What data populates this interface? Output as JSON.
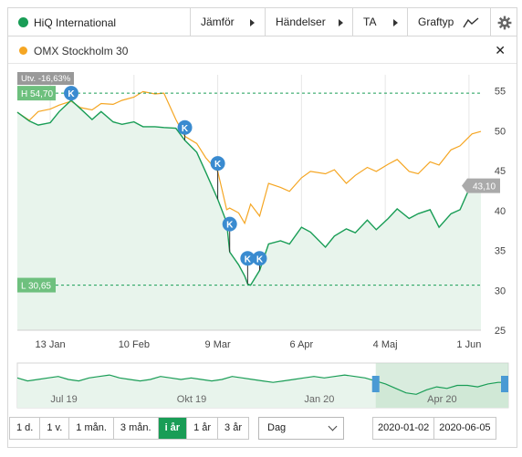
{
  "header": {
    "instrument": "HiQ International",
    "instrument_color": "#199d56",
    "buttons": [
      {
        "label": "Jämför"
      },
      {
        "label": "Händelser"
      },
      {
        "label": "TA"
      },
      {
        "label": "Graftyp"
      }
    ],
    "settings_icon": "gear-icon",
    "charttype_icon": "line-chart-icon"
  },
  "compare": {
    "label": "OMX Stockholm 30",
    "color": "#f5a623",
    "close_icon": "close-icon"
  },
  "chart_data": {
    "type": "line",
    "x_ticks": [
      "13 Jan",
      "10 Feb",
      "9 Mar",
      "6 Apr",
      "4 Maj",
      "1 Jun"
    ],
    "y_ticks": [
      "55",
      "50",
      "45",
      "40",
      "35",
      "30",
      "25"
    ],
    "ylim": [
      25,
      57
    ],
    "xlim": [
      "2020-01-02",
      "2020-06-05"
    ],
    "high_label": "H 54,70",
    "low_label": "L 30,65",
    "high_value": 54.7,
    "low_value": 30.65,
    "change_label": "Utv. -16,63%",
    "last_label": "43,10",
    "last_value": 43.1,
    "series": [
      {
        "name": "HiQ International",
        "color": "#199d56",
        "points": [
          [
            "2020-01-02",
            52.3
          ],
          [
            "2020-01-06",
            51.2
          ],
          [
            "2020-01-09",
            50.7
          ],
          [
            "2020-01-13",
            51.0
          ],
          [
            "2020-01-16",
            52.4
          ],
          [
            "2020-01-20",
            53.8
          ],
          [
            "2020-01-23",
            52.8
          ],
          [
            "2020-01-27",
            51.4
          ],
          [
            "2020-01-30",
            52.4
          ],
          [
            "2020-02-03",
            51.1
          ],
          [
            "2020-02-06",
            50.8
          ],
          [
            "2020-02-10",
            51.1
          ],
          [
            "2020-02-13",
            50.5
          ],
          [
            "2020-02-17",
            50.5
          ],
          [
            "2020-02-20",
            50.4
          ],
          [
            "2020-02-24",
            50.3
          ],
          [
            "2020-02-27",
            48.8
          ],
          [
            "2020-03-02",
            47.3
          ],
          [
            "2020-03-05",
            44.8
          ],
          [
            "2020-03-09",
            41.4
          ],
          [
            "2020-03-12",
            38.5
          ],
          [
            "2020-03-13",
            34.8
          ],
          [
            "2020-03-16",
            33.2
          ],
          [
            "2020-03-18",
            31.8
          ],
          [
            "2020-03-19",
            30.8
          ],
          [
            "2020-03-20",
            30.65
          ],
          [
            "2020-03-23",
            32.5
          ],
          [
            "2020-03-26",
            35.8
          ],
          [
            "2020-03-30",
            36.2
          ],
          [
            "2020-04-02",
            35.8
          ],
          [
            "2020-04-06",
            37.9
          ],
          [
            "2020-04-09",
            37.3
          ],
          [
            "2020-04-14",
            35.4
          ],
          [
            "2020-04-17",
            36.8
          ],
          [
            "2020-04-21",
            37.7
          ],
          [
            "2020-04-24",
            37.2
          ],
          [
            "2020-04-28",
            38.8
          ],
          [
            "2020-05-01",
            37.6
          ],
          [
            "2020-05-05",
            39.0
          ],
          [
            "2020-05-08",
            40.2
          ],
          [
            "2020-05-12",
            39.0
          ],
          [
            "2020-05-15",
            39.6
          ],
          [
            "2020-05-19",
            40.1
          ],
          [
            "2020-05-22",
            37.9
          ],
          [
            "2020-05-26",
            39.6
          ],
          [
            "2020-05-29",
            40.1
          ],
          [
            "2020-06-02",
            43.5
          ],
          [
            "2020-06-05",
            43.1
          ]
        ]
      },
      {
        "name": "OMX Stockholm 30",
        "color": "#f5a623",
        "points": [
          [
            "2020-01-02",
            52.3
          ],
          [
            "2020-01-06",
            51.3
          ],
          [
            "2020-01-09",
            52.4
          ],
          [
            "2020-01-13",
            52.7
          ],
          [
            "2020-01-16",
            53.2
          ],
          [
            "2020-01-20",
            53.7
          ],
          [
            "2020-01-23",
            52.9
          ],
          [
            "2020-01-27",
            52.6
          ],
          [
            "2020-01-30",
            53.4
          ],
          [
            "2020-02-03",
            53.3
          ],
          [
            "2020-02-06",
            53.8
          ],
          [
            "2020-02-10",
            54.2
          ],
          [
            "2020-02-13",
            54.9
          ],
          [
            "2020-02-17",
            54.6
          ],
          [
            "2020-02-20",
            54.7
          ],
          [
            "2020-02-24",
            51.4
          ],
          [
            "2020-02-27",
            49.3
          ],
          [
            "2020-03-02",
            48.4
          ],
          [
            "2020-03-05",
            46.6
          ],
          [
            "2020-03-09",
            44.9
          ],
          [
            "2020-03-12",
            40.1
          ],
          [
            "2020-03-13",
            40.3
          ],
          [
            "2020-03-16",
            39.7
          ],
          [
            "2020-03-18",
            38.4
          ],
          [
            "2020-03-19",
            39.6
          ],
          [
            "2020-03-20",
            40.8
          ],
          [
            "2020-03-23",
            39.3
          ],
          [
            "2020-03-26",
            43.4
          ],
          [
            "2020-03-30",
            42.9
          ],
          [
            "2020-04-02",
            42.4
          ],
          [
            "2020-04-06",
            44.1
          ],
          [
            "2020-04-09",
            44.9
          ],
          [
            "2020-04-14",
            44.6
          ],
          [
            "2020-04-17",
            45.1
          ],
          [
            "2020-04-21",
            43.4
          ],
          [
            "2020-04-24",
            44.4
          ],
          [
            "2020-04-28",
            45.4
          ],
          [
            "2020-05-01",
            44.9
          ],
          [
            "2020-05-05",
            45.8
          ],
          [
            "2020-05-08",
            46.4
          ],
          [
            "2020-05-12",
            44.9
          ],
          [
            "2020-05-15",
            44.6
          ],
          [
            "2020-05-19",
            46.1
          ],
          [
            "2020-05-22",
            45.7
          ],
          [
            "2020-05-26",
            47.6
          ],
          [
            "2020-05-29",
            48.1
          ],
          [
            "2020-06-02",
            49.6
          ],
          [
            "2020-06-05",
            49.9
          ]
        ]
      }
    ],
    "events": [
      {
        "label": "K",
        "date": "2020-01-20",
        "value": 54.7
      },
      {
        "label": "K",
        "date": "2020-02-27",
        "value": 50.4
      },
      {
        "label": "K",
        "date": "2020-03-09",
        "value": 45.9
      },
      {
        "label": "K",
        "date": "2020-03-13",
        "value": 38.3
      },
      {
        "label": "K",
        "date": "2020-03-19",
        "value": 34.0
      },
      {
        "label": "K",
        "date": "2020-03-23",
        "value": 34.0
      }
    ]
  },
  "navigator": {
    "labels": [
      "Jul 19",
      "Okt 19",
      "Jan 20",
      "Apr 20"
    ],
    "values": [
      60,
      58,
      59,
      60,
      61,
      59,
      58,
      60,
      61,
      62,
      60,
      59,
      58,
      59,
      61,
      60,
      59,
      60,
      59,
      58,
      59,
      61,
      60,
      59,
      58,
      57,
      58,
      59,
      60,
      61,
      60,
      61,
      62,
      61,
      60,
      58,
      56,
      53,
      50,
      49,
      52,
      54,
      53,
      55,
      55,
      54,
      56,
      57,
      57
    ],
    "selection_from": 0.73
  },
  "controls": {
    "ranges": [
      "1 d.",
      "1 v.",
      "1 mån.",
      "3 mån.",
      "i år",
      "1 år",
      "3 år"
    ],
    "active_range": "i år",
    "interval": "Dag",
    "date_from": "2020-01-02",
    "date_to": "2020-06-05"
  }
}
